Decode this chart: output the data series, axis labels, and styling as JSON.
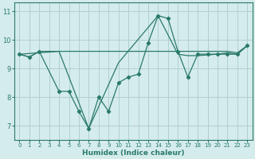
{
  "xlabel": "Humidex (Indice chaleur)",
  "background_color": "#d5ecec",
  "grid_color": "#b0d0d0",
  "line_color": "#2a7a6a",
  "xlim": [
    -0.5,
    23.5
  ],
  "ylim": [
    6.5,
    11.3
  ],
  "xticks": [
    0,
    1,
    2,
    3,
    4,
    5,
    6,
    7,
    8,
    9,
    10,
    11,
    12,
    13,
    14,
    15,
    16,
    17,
    18,
    19,
    20,
    21,
    22,
    23
  ],
  "yticks": [
    7,
    8,
    9,
    10,
    11
  ],
  "line_flat_x": [
    0,
    1,
    2,
    4,
    10,
    13,
    14,
    15,
    16,
    17,
    18,
    19,
    20,
    21,
    22,
    23
  ],
  "line_flat_y": [
    9.5,
    9.4,
    9.6,
    9.6,
    9.6,
    9.6,
    9.6,
    9.6,
    9.6,
    9.6,
    9.6,
    9.6,
    9.6,
    9.6,
    9.55,
    9.8
  ],
  "line_zigzag_x": [
    0,
    1,
    2,
    4,
    5,
    6,
    7,
    8,
    9,
    10,
    11,
    12,
    13,
    14,
    15,
    16,
    17,
    18,
    19,
    20,
    21,
    22,
    23
  ],
  "line_zigzag_y": [
    9.5,
    9.4,
    9.6,
    8.2,
    8.2,
    7.5,
    6.9,
    8.0,
    7.5,
    8.5,
    8.7,
    8.8,
    9.9,
    10.85,
    10.75,
    9.6,
    8.7,
    9.5,
    9.5,
    9.5,
    9.5,
    9.5,
    9.8
  ],
  "line_trend_x": [
    0,
    4,
    7,
    10,
    14,
    16,
    17,
    18,
    20,
    21,
    22,
    23
  ],
  "line_trend_y": [
    9.5,
    9.6,
    6.9,
    9.2,
    10.85,
    9.5,
    9.45,
    9.45,
    9.5,
    9.55,
    9.5,
    9.8
  ]
}
